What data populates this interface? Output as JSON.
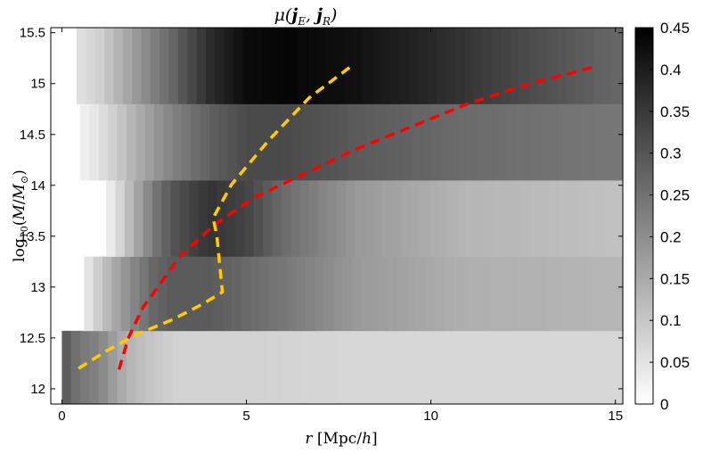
{
  "chart_data": {
    "type": "heatmap",
    "title": "μ(j_E, j_R)",
    "xlabel": "r [Mpc/h]",
    "ylabel": "log10(M/M⊙)",
    "xlim": [
      -0.3,
      15.2
    ],
    "ylim": [
      11.85,
      15.55
    ],
    "x_ticks": [
      0,
      5,
      10,
      15
    ],
    "y_ticks": [
      12,
      12.5,
      13,
      13.5,
      14,
      14.5,
      15,
      15.5
    ],
    "grid": false,
    "legend": "none",
    "colormap": "gray (white = 0, black = 0.45)",
    "colorbar": {
      "range": [
        0,
        0.45
      ],
      "ticks": [
        0,
        0.05,
        0.1,
        0.15,
        0.2,
        0.25,
        0.3,
        0.35,
        0.4,
        0.45
      ],
      "tick_labels": [
        "0",
        "0.05",
        "0.1",
        "0.15",
        "0.2",
        "0.25",
        "0.3",
        "0.35",
        "0.4",
        "0.45"
      ]
    },
    "mass_bins": [
      {
        "log_m_range": [
          11.85,
          12.57
        ],
        "x_start": 0.0,
        "profile_r": [
          0.0,
          0.5,
          1.0,
          1.5,
          2.0,
          3.0,
          5.0,
          8.0,
          11.0,
          15.0
        ],
        "profile_mu": [
          0.3,
          0.24,
          0.22,
          0.16,
          0.12,
          0.08,
          0.08,
          0.07,
          0.07,
          0.07
        ]
      },
      {
        "log_m_range": [
          12.57,
          13.3
        ],
        "x_start": 0.6,
        "profile_r": [
          0.6,
          1.0,
          1.5,
          2.0,
          2.5,
          3.0,
          4.0,
          6.0,
          8.0,
          11.0,
          15.0
        ],
        "profile_mu": [
          0.03,
          0.09,
          0.16,
          0.22,
          0.27,
          0.29,
          0.29,
          0.24,
          0.18,
          0.14,
          0.13
        ]
      },
      {
        "log_m_range": [
          13.3,
          14.05
        ],
        "x_start": 1.2,
        "profile_r": [
          1.2,
          1.5,
          2.0,
          2.5,
          3.0,
          4.0,
          5.0,
          6.0,
          8.0,
          11.0,
          15.0
        ],
        "profile_mu": [
          0.02,
          0.06,
          0.15,
          0.24,
          0.3,
          0.36,
          0.33,
          0.26,
          0.18,
          0.13,
          0.11
        ]
      },
      {
        "log_m_range": [
          14.05,
          14.8
        ],
        "x_start": 0.5,
        "profile_r": [
          0.5,
          1.0,
          2.0,
          3.0,
          4.0,
          5.0,
          6.0,
          8.0,
          11.0,
          15.0
        ],
        "profile_mu": [
          0.02,
          0.05,
          0.14,
          0.22,
          0.28,
          0.32,
          0.32,
          0.29,
          0.26,
          0.24
        ]
      },
      {
        "log_m_range": [
          14.8,
          15.55
        ],
        "x_start": 0.4,
        "profile_r": [
          0.4,
          1.0,
          2.0,
          3.0,
          4.0,
          5.0,
          6.0,
          8.0,
          10.0,
          12.0,
          15.0
        ],
        "profile_mu": [
          0.05,
          0.08,
          0.18,
          0.27,
          0.37,
          0.43,
          0.44,
          0.42,
          0.38,
          0.33,
          0.27
        ]
      }
    ],
    "series": [
      {
        "color": "#ff0000",
        "style": "dashed",
        "x": [
          1.55,
          1.8,
          2.2,
          3.2,
          4.1,
          5.2,
          6.5,
          8.0,
          9.5,
          11.0,
          12.5,
          14.5
        ],
        "y": [
          12.19,
          12.5,
          12.8,
          13.3,
          13.6,
          13.88,
          14.1,
          14.36,
          14.58,
          14.8,
          14.98,
          15.17
        ]
      },
      {
        "color": "#ffcc00",
        "style": "dashed",
        "x": [
          0.45,
          1.2,
          2.0,
          3.0,
          3.8,
          4.35,
          4.2,
          4.1,
          4.6,
          5.6,
          6.7,
          7.8
        ],
        "y": [
          12.2,
          12.37,
          12.53,
          12.68,
          12.83,
          12.95,
          13.5,
          13.68,
          14.01,
          14.44,
          14.86,
          15.16
        ]
      }
    ]
  }
}
